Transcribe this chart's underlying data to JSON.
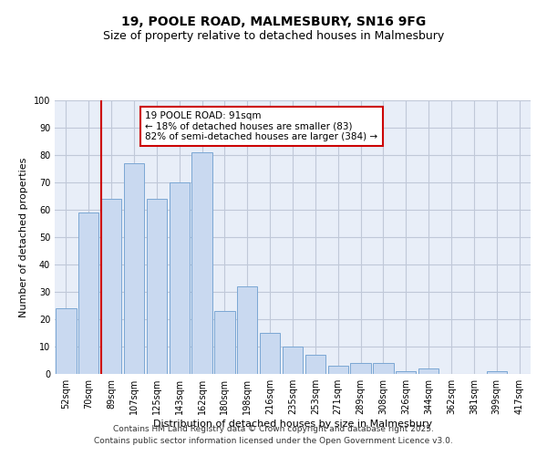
{
  "title_line1": "19, POOLE ROAD, MALMESBURY, SN16 9FG",
  "title_line2": "Size of property relative to detached houses in Malmesbury",
  "xlabel": "Distribution of detached houses by size in Malmesbury",
  "ylabel": "Number of detached properties",
  "categories": [
    "52sqm",
    "70sqm",
    "89sqm",
    "107sqm",
    "125sqm",
    "143sqm",
    "162sqm",
    "180sqm",
    "198sqm",
    "216sqm",
    "235sqm",
    "253sqm",
    "271sqm",
    "289sqm",
    "308sqm",
    "326sqm",
    "344sqm",
    "362sqm",
    "381sqm",
    "399sqm",
    "417sqm"
  ],
  "values": [
    24,
    59,
    64,
    77,
    64,
    70,
    81,
    23,
    32,
    15,
    10,
    7,
    3,
    4,
    4,
    1,
    2,
    0,
    0,
    1,
    0
  ],
  "bar_color": "#c9d9f0",
  "bar_edge_color": "#7ba7d4",
  "vline_index": 2,
  "vline_color": "#cc0000",
  "annotation_text": "19 POOLE ROAD: 91sqm\n← 18% of detached houses are smaller (83)\n82% of semi-detached houses are larger (384) →",
  "annotation_box_color": "#ffffff",
  "annotation_box_edge": "#cc0000",
  "ylim": [
    0,
    100
  ],
  "yticks": [
    0,
    10,
    20,
    30,
    40,
    50,
    60,
    70,
    80,
    90,
    100
  ],
  "grid_color": "#c0c8d8",
  "bg_color": "#e8eef8",
  "footer_line1": "Contains HM Land Registry data © Crown copyright and database right 2025.",
  "footer_line2": "Contains public sector information licensed under the Open Government Licence v3.0.",
  "title_fontsize": 10,
  "subtitle_fontsize": 9,
  "axis_label_fontsize": 8,
  "tick_fontsize": 7,
  "annotation_fontsize": 7.5,
  "footer_fontsize": 6.5
}
